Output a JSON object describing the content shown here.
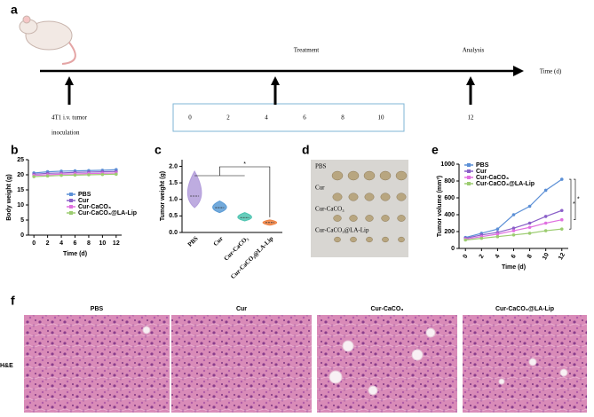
{
  "panel_labels": [
    "a",
    "b",
    "c",
    "d",
    "e",
    "f"
  ],
  "timeline": {
    "title": "Treatment",
    "end_label": "Analysis",
    "axis_label": "Time (d)",
    "start_label": [
      "4T1 i.v. tumor",
      "inoculation"
    ],
    "treatment_days": [
      0,
      2,
      4,
      6,
      8,
      10
    ],
    "analysis_day": 12
  },
  "chart_data": [
    {
      "type": "line",
      "ylabel": "Body weight (g)",
      "xlabel": "Time (d)",
      "x": [
        0,
        2,
        4,
        6,
        8,
        10,
        12
      ],
      "xlim": [
        -0.8,
        12.8
      ],
      "xticks": [
        0,
        2,
        4,
        6,
        8,
        10,
        12
      ],
      "ylim": [
        0,
        25
      ],
      "yticks": [
        0,
        5,
        10,
        15,
        20,
        25
      ],
      "legend": "lower right",
      "tick_rotation": 0,
      "series": [
        {
          "name": "PBS",
          "color": "#5b8fd6",
          "values": [
            20.6,
            21,
            21.2,
            21.3,
            21.4,
            21.5,
            21.7
          ]
        },
        {
          "name": "Cur",
          "color": "#8a5fc8",
          "values": [
            20.2,
            20.5,
            20.6,
            20.8,
            20.9,
            21,
            21.1
          ]
        },
        {
          "name": "Cur-CaCO₃",
          "color": "#e070e0",
          "values": [
            19.8,
            20,
            20.2,
            20.3,
            20.4,
            20.5,
            20.6
          ]
        },
        {
          "name": "Cur-CaCO₃@LA-Lip",
          "color": "#9ccc70",
          "values": [
            19.4,
            19.6,
            19.8,
            19.9,
            20,
            20.1,
            20.2
          ]
        }
      ]
    },
    {
      "type": "violin",
      "ylabel": "Tumor weight (g)",
      "categories": [
        "PBS",
        "Cur",
        "Cur-CaCO₃",
        "Cur-CaCO₃@LA-Lip"
      ],
      "values": [
        1.1,
        0.75,
        0.45,
        0.3
      ],
      "min": [
        0.75,
        0.6,
        0.35,
        0.22
      ],
      "max": [
        1.85,
        0.95,
        0.6,
        0.38
      ],
      "colors": [
        "#b39ddb",
        "#5b9bd5",
        "#4dc4b0",
        "#f08040"
      ],
      "ylim": [
        0,
        2.2
      ],
      "yticks": [
        {
          "value": 0,
          "label": "0.0"
        },
        0.5,
        {
          "value": 1,
          "label": "1.0"
        },
        1.5,
        {
          "value": 2,
          "label": "2.0"
        }
      ],
      "annotations": [
        "*"
      ]
    },
    {
      "type": "line",
      "ylabel": "Tumor volume (mm³)",
      "xlabel": "Time (d)",
      "x": [
        0,
        2,
        4,
        6,
        8,
        10,
        12
      ],
      "xlim": [
        -0.8,
        12.8
      ],
      "xticks": [
        0,
        2,
        4,
        6,
        8,
        10,
        12
      ],
      "ylim": [
        0,
        1000
      ],
      "yticks": [
        0,
        200,
        400,
        600,
        800,
        1000
      ],
      "legend": "upper left",
      "tick_rotation": -60,
      "series": [
        {
          "name": "PBS",
          "color": "#5b8fd6",
          "values": [
            130,
            180,
            230,
            400,
            500,
            690,
            820
          ]
        },
        {
          "name": "Cur",
          "color": "#8a5fc8",
          "values": [
            120,
            160,
            190,
            240,
            300,
            380,
            450
          ]
        },
        {
          "name": "Cur-CaCO₃",
          "color": "#e070e0",
          "values": [
            110,
            140,
            170,
            210,
            250,
            300,
            340
          ]
        },
        {
          "name": "Cur-CaCO₃@LA-Lip",
          "color": "#9ccc70",
          "values": [
            100,
            120,
            140,
            160,
            180,
            210,
            230
          ]
        }
      ],
      "annotations": [
        "*",
        "*"
      ]
    }
  ],
  "photo": {
    "labels": [
      "PBS",
      "Cur",
      "Cur-CaCO₃",
      "Cur-CaCO₃@LA-Lip"
    ]
  },
  "histology": {
    "stain_label": "H&E",
    "groups": [
      "PBS",
      "Cur",
      "Cur-CaCO₃",
      "Cur-CaCO₃@LA-Lip"
    ]
  }
}
